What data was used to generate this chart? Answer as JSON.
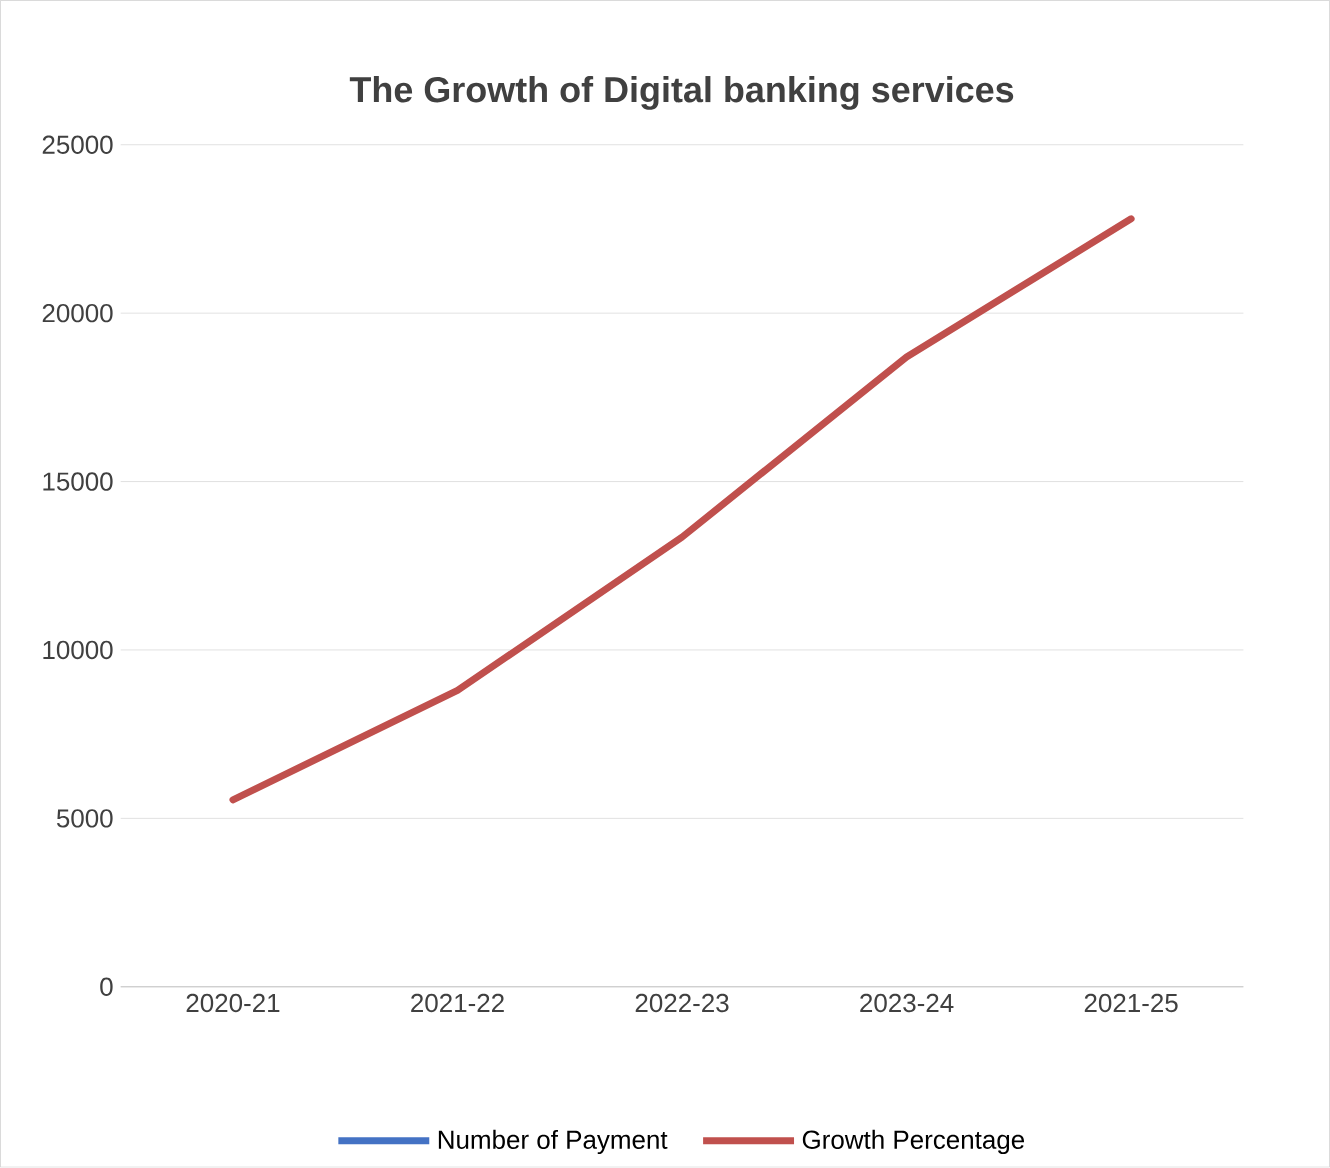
{
  "chart_data": {
    "type": "line",
    "title": "The Growth of Digital banking services",
    "categories": [
      "2020-21",
      "2021-22",
      "2022-23",
      "2023-24",
      "2021-25"
    ],
    "series": [
      {
        "name": "Number of Payment",
        "color": "#4472c4",
        "values": [
          null,
          null,
          null,
          null,
          null
        ]
      },
      {
        "name": "Growth Percentage",
        "color": "#c0504d",
        "values": [
          5550,
          8800,
          13350,
          18700,
          22800
        ]
      }
    ],
    "ylim": [
      0,
      25000
    ],
    "yticks": [
      0,
      5000,
      10000,
      15000,
      20000,
      25000
    ],
    "grid": "y",
    "legend": "bottom",
    "marker": "none",
    "line_style": "solid"
  }
}
